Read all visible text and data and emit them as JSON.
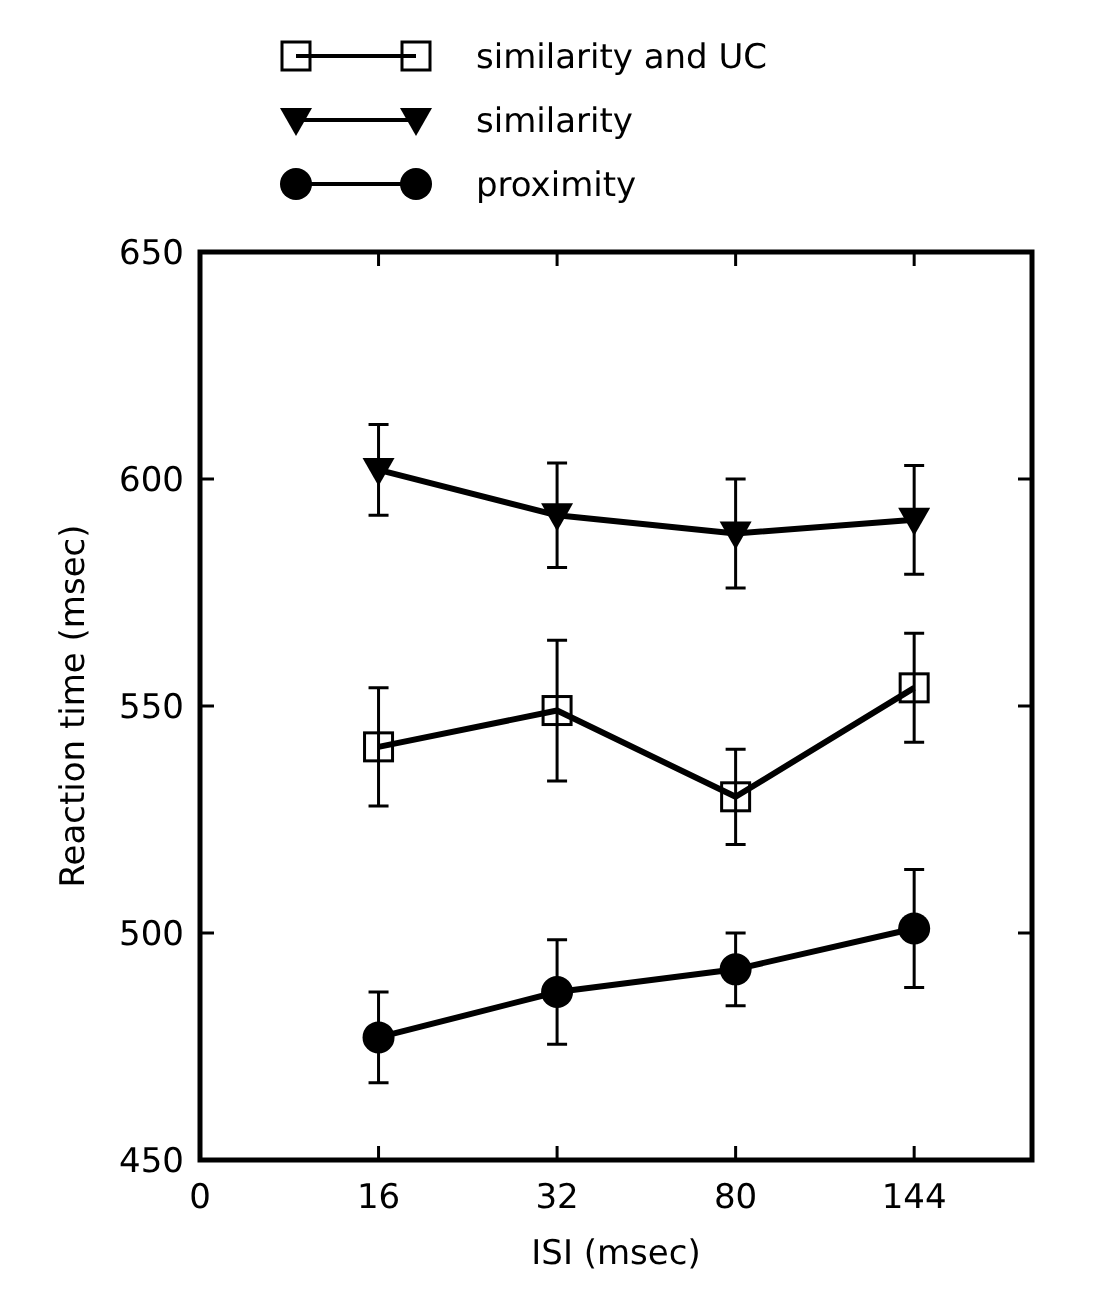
{
  "chart_data": {
    "type": "line",
    "xlabel": "ISI (msec)",
    "ylabel": "Reaction time (msec)",
    "categories": [
      "0",
      "16",
      "32",
      "80",
      "144"
    ],
    "ylim": [
      450,
      650
    ],
    "yticks": [
      450,
      500,
      550,
      600,
      650
    ],
    "grid": false,
    "legend": "top",
    "line_style": "solid",
    "series": [
      {
        "name": "similarity and UC",
        "color": "#000000",
        "marker": "square",
        "values": [
          null,
          541,
          549,
          530,
          554
        ],
        "errors": [
          null,
          13,
          15.5,
          10.5,
          12
        ]
      },
      {
        "name": "similarity",
        "color": "#000000",
        "marker": "triangle",
        "values": [
          null,
          602,
          592,
          588,
          591
        ],
        "errors": [
          null,
          10,
          11.5,
          12,
          12
        ]
      },
      {
        "name": "proximity",
        "color": "#000000",
        "marker": "circle",
        "values": [
          null,
          477,
          487,
          492,
          501
        ],
        "errors": [
          null,
          10,
          11.5,
          8,
          13
        ]
      }
    ]
  }
}
